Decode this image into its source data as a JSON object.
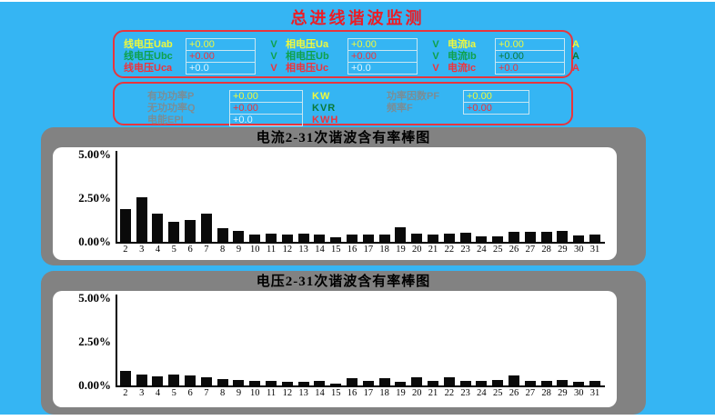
{
  "page": {
    "title": "总进线谐波监测",
    "background_color": "#35B5F3",
    "panel_border_color": "#E8353D",
    "chart_panel_color": "#828282",
    "title_color": "#EC1C24",
    "phase_a_color": "#EFF93C",
    "phase_b_color": "#0FA14B",
    "phase_c_color": "#F0333B"
  },
  "instrument_panel": {
    "voltage_line": {
      "rows": [
        {
          "label": "线电压Uab",
          "value": "+0.00",
          "unit": "V"
        },
        {
          "label": "线电压Ubc",
          "value": "+0.00",
          "unit": "V"
        },
        {
          "label": "线电压Uca",
          "value": "+0.0",
          "unit": "V"
        }
      ]
    },
    "voltage_phase": {
      "rows": [
        {
          "label": "相电压Ua",
          "value": "+0.00",
          "unit": "V"
        },
        {
          "label": "相电压Ub",
          "value": "+0.00",
          "unit": "V"
        },
        {
          "label": "相电压Uc",
          "value": "+0.0",
          "unit": "V"
        }
      ]
    },
    "current": {
      "rows": [
        {
          "label": "电流Ia",
          "value": "+0.00",
          "unit": "A"
        },
        {
          "label": "电流Ib",
          "value": "+0.00",
          "unit": "A"
        },
        {
          "label": "电流Ic",
          "value": "+0.0",
          "unit": "A"
        }
      ]
    }
  },
  "power_panel": {
    "left_rows": [
      {
        "label": "有功功率P",
        "value": "+0.00",
        "unit": "KW"
      },
      {
        "label": "无功功率Q",
        "value": "+0.00",
        "unit": "KVR"
      },
      {
        "label": "电能EPI",
        "value": "+0.0",
        "unit": "KWH"
      }
    ],
    "right_rows": [
      {
        "label": "功率因数PF",
        "value": "+0.00"
      },
      {
        "label": "频率F",
        "value": "+0.00"
      }
    ]
  },
  "chart_data": [
    {
      "type": "bar",
      "title": "电流2-31次谐波含有率棒图",
      "categories": [
        2,
        3,
        4,
        5,
        6,
        7,
        8,
        9,
        10,
        11,
        12,
        13,
        14,
        15,
        16,
        17,
        18,
        19,
        20,
        21,
        22,
        23,
        24,
        25,
        26,
        27,
        28,
        29,
        30,
        31
      ],
      "values": [
        1.9,
        2.55,
        1.62,
        1.15,
        1.26,
        1.62,
        0.79,
        0.63,
        0.44,
        0.45,
        0.44,
        0.45,
        0.44,
        0.28,
        0.44,
        0.44,
        0.44,
        0.82,
        0.46,
        0.44,
        0.46,
        0.5,
        0.31,
        0.32,
        0.57,
        0.58,
        0.55,
        0.6,
        0.39,
        0.43
      ],
      "xlabel": "",
      "ylabel": "",
      "yticks": [
        "5.00%",
        "2.50%",
        "0.00%"
      ],
      "ylim": [
        0,
        5.4
      ],
      "grid": false,
      "legend": "none",
      "bar_color": "#0a0a0a"
    },
    {
      "type": "bar",
      "title": "电压2-31次谐波含有率棒图",
      "categories": [
        2,
        3,
        4,
        5,
        6,
        7,
        8,
        9,
        10,
        11,
        12,
        13,
        14,
        15,
        16,
        17,
        18,
        19,
        20,
        21,
        22,
        23,
        24,
        25,
        26,
        27,
        28,
        29,
        30,
        31
      ],
      "values": [
        0.81,
        0.63,
        0.53,
        0.63,
        0.59,
        0.48,
        0.36,
        0.3,
        0.28,
        0.25,
        0.22,
        0.22,
        0.25,
        0.09,
        0.42,
        0.27,
        0.41,
        0.19,
        0.47,
        0.28,
        0.47,
        0.25,
        0.28,
        0.31,
        0.56,
        0.25,
        0.28,
        0.31,
        0.22,
        0.25
      ],
      "xlabel": "",
      "ylabel": "",
      "yticks": [
        "5.00%",
        "2.50%",
        "0.00%"
      ],
      "ylim": [
        0,
        5.4
      ],
      "grid": false,
      "legend": "none",
      "bar_color": "#0a0a0a"
    }
  ]
}
